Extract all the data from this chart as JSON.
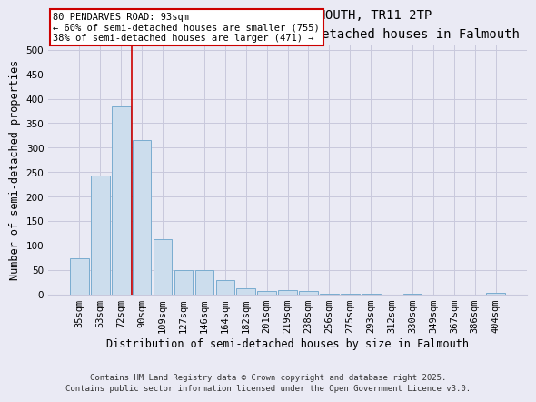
{
  "title_line1": "80, PENDARVES ROAD, FALMOUTH, TR11 2TP",
  "title_line2": "Size of property relative to semi-detached houses in Falmouth",
  "xlabel": "Distribution of semi-detached houses by size in Falmouth",
  "ylabel": "Number of semi-detached properties",
  "categories": [
    "35sqm",
    "53sqm",
    "72sqm",
    "90sqm",
    "109sqm",
    "127sqm",
    "146sqm",
    "164sqm",
    "182sqm",
    "201sqm",
    "219sqm",
    "238sqm",
    "256sqm",
    "275sqm",
    "293sqm",
    "312sqm",
    "330sqm",
    "349sqm",
    "367sqm",
    "386sqm",
    "404sqm"
  ],
  "values": [
    73,
    242,
    385,
    315,
    113,
    50,
    50,
    29,
    12,
    7,
    8,
    7,
    2,
    2,
    2,
    0,
    1,
    0,
    0,
    0,
    3
  ],
  "bar_color": "#ccdded",
  "bar_edge_color": "#7aaccf",
  "vline_color": "#cc0000",
  "annotation_title": "80 PENDARVES ROAD: 93sqm",
  "annotation_line2": "← 60% of semi-detached houses are smaller (755)",
  "annotation_line3": "38% of semi-detached houses are larger (471) →",
  "annotation_box_color": "#cc0000",
  "ylim": [
    0,
    510
  ],
  "yticks": [
    0,
    50,
    100,
    150,
    200,
    250,
    300,
    350,
    400,
    450,
    500
  ],
  "grid_color": "#c8c8dc",
  "bg_color": "#eaeaf4",
  "footer_line1": "Contains HM Land Registry data © Crown copyright and database right 2025.",
  "footer_line2": "Contains public sector information licensed under the Open Government Licence v3.0.",
  "title_fontsize": 10,
  "subtitle_fontsize": 9,
  "axis_label_fontsize": 8.5,
  "tick_fontsize": 7.5,
  "annotation_fontsize": 7.5,
  "footer_fontsize": 6.5
}
